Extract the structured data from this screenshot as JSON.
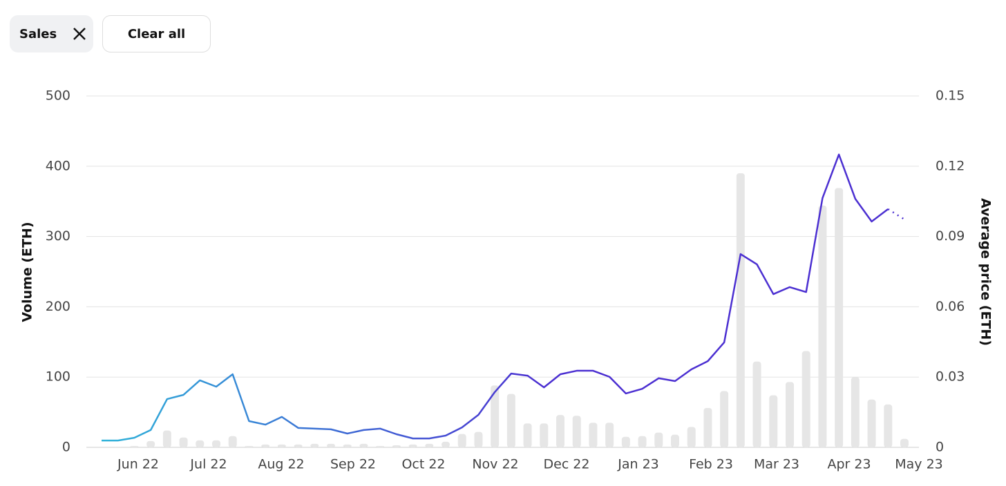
{
  "filters": {
    "chip": "Sales",
    "clear": "Clear all"
  },
  "chart_data": {
    "type": "bar_line",
    "y_label": "Volume (ETH)",
    "y2_label": "Average price (ETH)",
    "month_labels": [
      "Jun 22",
      "Jul 22",
      "Aug 22",
      "Sep 22",
      "Oct 22",
      "Nov 22",
      "Dec 22",
      "Jan 23",
      "Feb 23",
      "Mar 23",
      "Apr 23",
      "May 23"
    ],
    "categories": [
      null,
      null,
      null,
      null,
      null,
      null,
      null,
      null,
      null,
      null,
      null,
      null,
      null,
      null,
      null,
      null,
      null,
      null,
      null,
      null,
      null,
      null,
      null,
      null,
      null,
      null,
      null,
      null,
      null,
      null,
      null,
      null,
      null,
      null,
      null,
      null,
      null,
      null,
      null,
      null,
      null,
      null,
      null,
      null,
      null,
      null,
      null,
      null,
      null,
      null
    ],
    "ylim": [
      0,
      500
    ],
    "yticks": [
      0,
      100,
      200,
      300,
      400,
      500
    ],
    "y2lim": [
      0,
      0.15
    ],
    "y2ticks": [
      0,
      0.03,
      0.06,
      0.09,
      0.12,
      0.15
    ],
    "grid": true,
    "series": [
      {
        "name": "Volume",
        "type": "bar",
        "color": "#e6e6e6",
        "values": [
          1,
          1,
          2,
          9,
          24,
          14,
          10,
          10,
          16,
          2,
          4,
          4,
          4,
          5,
          5,
          4,
          5,
          2,
          3,
          4,
          5,
          8,
          19,
          22,
          88,
          76,
          34,
          34,
          46,
          45,
          35,
          35,
          15,
          16,
          21,
          18,
          29,
          56,
          80,
          390,
          122,
          74,
          93,
          137,
          344,
          369,
          100,
          68,
          61,
          12
        ]
      },
      {
        "name": "Average price",
        "type": "line",
        "axis": "y2",
        "color": "#4b2fd1",
        "color_start": "#2fb3d9",
        "values": [
          0.0029,
          0.0029,
          0.0041,
          0.0074,
          0.0206,
          0.0224,
          0.0286,
          0.0259,
          0.0312,
          0.0112,
          0.0097,
          0.013,
          0.0083,
          0.008,
          0.0077,
          0.0059,
          0.0074,
          0.008,
          0.0056,
          0.0038,
          0.0038,
          0.005,
          0.0085,
          0.0139,
          0.0236,
          0.0315,
          0.0306,
          0.0256,
          0.0312,
          0.0327,
          0.0327,
          0.0301,
          0.023,
          0.025,
          0.0295,
          0.0283,
          0.0333,
          0.0368,
          0.0448,
          0.0825,
          0.0781,
          0.0654,
          0.0684,
          0.0663,
          0.1064,
          0.125,
          0.1061,
          0.0964,
          0.1017,
          0.0973
        ]
      }
    ]
  }
}
